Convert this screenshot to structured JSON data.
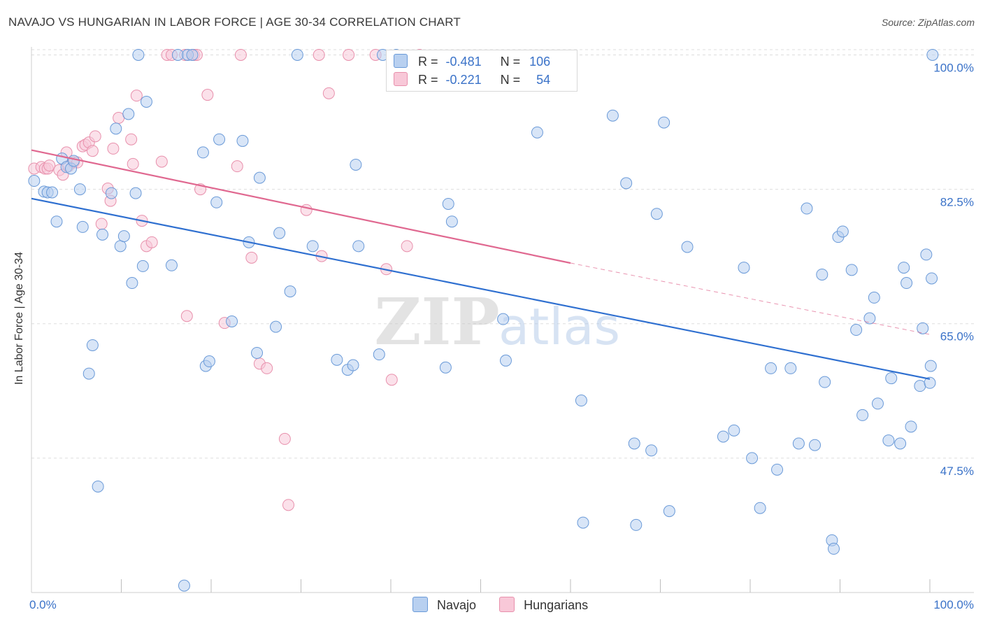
{
  "header": {
    "title": "NAVAJO VS HUNGARIAN IN LABOR FORCE | AGE 30-34 CORRELATION CHART",
    "source": "Source: ZipAtlas.com"
  },
  "watermark": {
    "zip": "ZIP",
    "atlas": "atlas"
  },
  "legend": {
    "navajo": {
      "r_label": "R =",
      "r_value": "-0.481",
      "n_label": "N =",
      "n_value": "106"
    },
    "hungarians": {
      "r_label": "R =",
      "r_value": "-0.221",
      "n_label": "N =",
      "n_value": "54"
    }
  },
  "bottom_legend": {
    "navajo": "Navajo",
    "hungarians": "Hungarians"
  },
  "colors": {
    "navajo_fill": "#b8d0f0",
    "navajo_stroke": "#6a9ad8",
    "navajo_line": "#2e6fd0",
    "hungarian_fill": "#f8c8d8",
    "hungarian_stroke": "#e890ac",
    "hungarian_line": "#e06890",
    "grid": "#dddddd",
    "tick_text": "#3a72c8"
  },
  "chart_data": {
    "type": "scatter",
    "title": "NAVAJO VS HUNGARIAN IN LABOR FORCE | AGE 30-34 CORRELATION CHART",
    "xlabel": "",
    "ylabel": "In Labor Force | Age 30-34",
    "xlim": [
      0,
      100
    ],
    "ylim": [
      30,
      101.5
    ],
    "x_tick_labels": [
      {
        "value": 0,
        "label": "0.0%"
      },
      {
        "value": 100,
        "label": "100.0%"
      }
    ],
    "y_ticks": [
      {
        "value": 100,
        "label": "100.0%"
      },
      {
        "value": 82.5,
        "label": "82.5%"
      },
      {
        "value": 65,
        "label": "65.0%"
      },
      {
        "value": 47.5,
        "label": "47.5%"
      }
    ],
    "series": [
      {
        "name": "Navajo",
        "r": -0.481,
        "n": 106,
        "trend": {
          "x0": 0,
          "y0": 81.3,
          "x1": 100,
          "y1": 57.8
        },
        "points": [
          [
            0.3,
            83.6
          ],
          [
            1.4,
            82.2
          ],
          [
            1.8,
            82.1
          ],
          [
            2.3,
            82.1
          ],
          [
            2.8,
            78.3
          ],
          [
            3.4,
            86.5
          ],
          [
            3.9,
            85.4
          ],
          [
            4.4,
            85.2
          ],
          [
            4.7,
            86.2
          ],
          [
            5.4,
            82.5
          ],
          [
            5.7,
            77.6
          ],
          [
            6.4,
            58.5
          ],
          [
            6.8,
            62.2
          ],
          [
            7.4,
            43.8
          ],
          [
            7.9,
            76.6
          ],
          [
            8.9,
            82.0
          ],
          [
            9.4,
            90.4
          ],
          [
            9.9,
            75.1
          ],
          [
            10.3,
            76.4
          ],
          [
            10.8,
            92.3
          ],
          [
            11.2,
            70.3
          ],
          [
            11.6,
            82.0
          ],
          [
            11.9,
            100.0
          ],
          [
            12.4,
            72.5
          ],
          [
            12.8,
            93.9
          ],
          [
            15.6,
            72.6
          ],
          [
            16.3,
            100.0
          ],
          [
            17.0,
            30.9
          ],
          [
            17.4,
            100.0
          ],
          [
            17.9,
            100.0
          ],
          [
            19.1,
            87.3
          ],
          [
            19.4,
            59.5
          ],
          [
            19.8,
            60.1
          ],
          [
            20.6,
            80.8
          ],
          [
            20.9,
            89.0
          ],
          [
            22.3,
            65.3
          ],
          [
            23.5,
            88.8
          ],
          [
            24.2,
            75.6
          ],
          [
            25.1,
            61.2
          ],
          [
            25.4,
            84.0
          ],
          [
            27.2,
            64.6
          ],
          [
            27.6,
            76.8
          ],
          [
            28.8,
            69.2
          ],
          [
            29.6,
            100.0
          ],
          [
            31.3,
            75.1
          ],
          [
            34.0,
            60.3
          ],
          [
            35.2,
            59.0
          ],
          [
            35.8,
            59.6
          ],
          [
            36.1,
            85.7
          ],
          [
            36.4,
            75.1
          ],
          [
            38.7,
            61.0
          ],
          [
            39.1,
            100.0
          ],
          [
            40.6,
            100.0
          ],
          [
            46.1,
            59.3
          ],
          [
            46.4,
            80.6
          ],
          [
            46.8,
            78.3
          ],
          [
            52.5,
            65.6
          ],
          [
            52.8,
            60.2
          ],
          [
            56.3,
            89.9
          ],
          [
            61.2,
            55.0
          ],
          [
            61.4,
            39.1
          ],
          [
            64.7,
            92.1
          ],
          [
            66.2,
            83.3
          ],
          [
            67.1,
            49.4
          ],
          [
            67.3,
            38.8
          ],
          [
            69.0,
            48.5
          ],
          [
            69.6,
            79.3
          ],
          [
            70.4,
            91.2
          ],
          [
            71.0,
            40.6
          ],
          [
            73.0,
            75.0
          ],
          [
            77.0,
            50.3
          ],
          [
            78.2,
            51.1
          ],
          [
            79.3,
            72.3
          ],
          [
            80.2,
            47.5
          ],
          [
            81.1,
            41.0
          ],
          [
            82.3,
            59.2
          ],
          [
            83.0,
            46.0
          ],
          [
            84.5,
            59.2
          ],
          [
            85.4,
            49.4
          ],
          [
            86.3,
            80.0
          ],
          [
            87.2,
            49.2
          ],
          [
            88.0,
            71.4
          ],
          [
            88.3,
            57.4
          ],
          [
            89.1,
            36.8
          ],
          [
            89.3,
            35.7
          ],
          [
            89.8,
            76.3
          ],
          [
            90.3,
            77.0
          ],
          [
            91.3,
            72.0
          ],
          [
            91.8,
            64.2
          ],
          [
            92.5,
            53.1
          ],
          [
            93.3,
            65.7
          ],
          [
            93.8,
            68.4
          ],
          [
            94.2,
            54.6
          ],
          [
            95.4,
            49.8
          ],
          [
            95.7,
            57.9
          ],
          [
            96.7,
            49.4
          ],
          [
            97.1,
            72.3
          ],
          [
            97.4,
            70.3
          ],
          [
            97.9,
            51.6
          ],
          [
            98.9,
            56.9
          ],
          [
            99.2,
            64.4
          ],
          [
            99.6,
            74.0
          ],
          [
            100.0,
            57.3
          ],
          [
            100.1,
            59.5
          ],
          [
            100.2,
            70.9
          ],
          [
            100.3,
            100.0
          ]
        ]
      },
      {
        "name": "Hungarians",
        "r": -0.221,
        "n": 54,
        "trend": {
          "x0": 0,
          "y0": 87.6,
          "x1": 60,
          "y1": 72.9,
          "x2": 100,
          "y2": 63.6
        },
        "points": [
          [
            0.3,
            85.2
          ],
          [
            1.1,
            85.4
          ],
          [
            1.5,
            85.2
          ],
          [
            1.8,
            85.2
          ],
          [
            2.0,
            85.6
          ],
          [
            3.1,
            85.0
          ],
          [
            3.5,
            84.4
          ],
          [
            3.9,
            87.3
          ],
          [
            4.1,
            85.5
          ],
          [
            4.7,
            86.0
          ],
          [
            5.1,
            86.0
          ],
          [
            5.7,
            88.1
          ],
          [
            6.0,
            88.3
          ],
          [
            6.4,
            88.6
          ],
          [
            6.8,
            87.5
          ],
          [
            7.1,
            89.4
          ],
          [
            7.8,
            78.0
          ],
          [
            8.5,
            82.6
          ],
          [
            8.8,
            81.0
          ],
          [
            9.1,
            87.8
          ],
          [
            9.7,
            91.8
          ],
          [
            11.1,
            89.0
          ],
          [
            11.3,
            85.8
          ],
          [
            11.7,
            94.7
          ],
          [
            12.3,
            78.4
          ],
          [
            12.8,
            75.1
          ],
          [
            13.4,
            75.6
          ],
          [
            14.5,
            86.1
          ],
          [
            15.1,
            100.0
          ],
          [
            15.6,
            100.0
          ],
          [
            17.1,
            100.0
          ],
          [
            17.3,
            66.0
          ],
          [
            18.1,
            100.0
          ],
          [
            18.4,
            100.0
          ],
          [
            18.8,
            82.5
          ],
          [
            19.6,
            94.8
          ],
          [
            21.5,
            65.1
          ],
          [
            22.9,
            85.5
          ],
          [
            23.3,
            100.0
          ],
          [
            24.5,
            73.6
          ],
          [
            25.4,
            59.8
          ],
          [
            26.2,
            59.2
          ],
          [
            28.2,
            50.0
          ],
          [
            28.6,
            41.4
          ],
          [
            30.6,
            79.8
          ],
          [
            32.0,
            100.0
          ],
          [
            32.3,
            73.8
          ],
          [
            33.1,
            95.0
          ],
          [
            35.3,
            100.0
          ],
          [
            38.3,
            100.0
          ],
          [
            39.5,
            72.1
          ],
          [
            40.1,
            57.7
          ],
          [
            41.8,
            75.1
          ],
          [
            43.2,
            100.0
          ]
        ]
      }
    ]
  }
}
